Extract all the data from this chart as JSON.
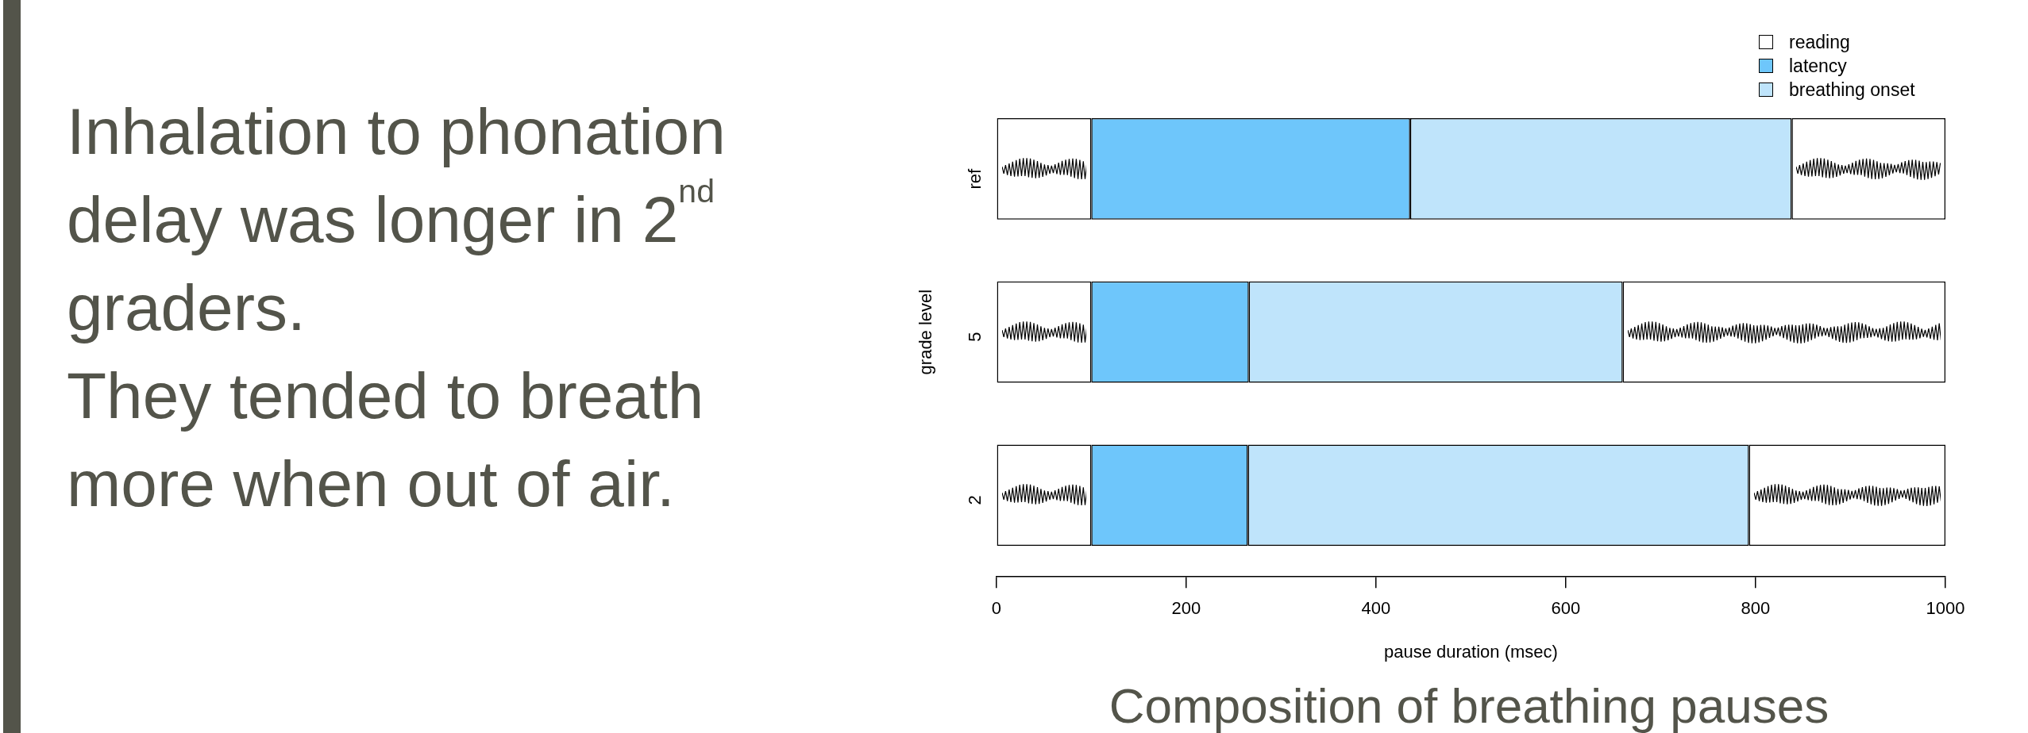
{
  "chart_data": {
    "type": "bar",
    "orientation": "horizontal",
    "stacked": true,
    "title": "Composition of breathing pauses",
    "xlabel": "pause duration (msec)",
    "ylabel": "grade level",
    "annotations": [
      "Inhalation to phonation delay was longer in 2$^{nd}$ graders.",
      "They tended to breath more when out of air."
    ],
    "categories": [
      "ref",
      "5",
      "2"
    ],
    "series": [
      {
        "name": "reading",
        "color": "#ffffff",
        "values": [
          100,
          100,
          100
        ]
      },
      {
        "name": "latency",
        "color": "#6ec6fb",
        "values": [
          336,
          166,
          165
        ]
      },
      {
        "name": "breathing onset",
        "color": "#bfe4fb",
        "values": [
          402,
          394,
          528
        ]
      },
      {
        "color": "#ffffff",
        "values": [
          162,
          340,
          207
        ]
      }
    ],
    "xlim": [
      0,
      1000
    ],
    "xticks": [
      0,
      200,
      400,
      600,
      800,
      1000
    ],
    "grid": false,
    "legend": "top right"
  }
}
